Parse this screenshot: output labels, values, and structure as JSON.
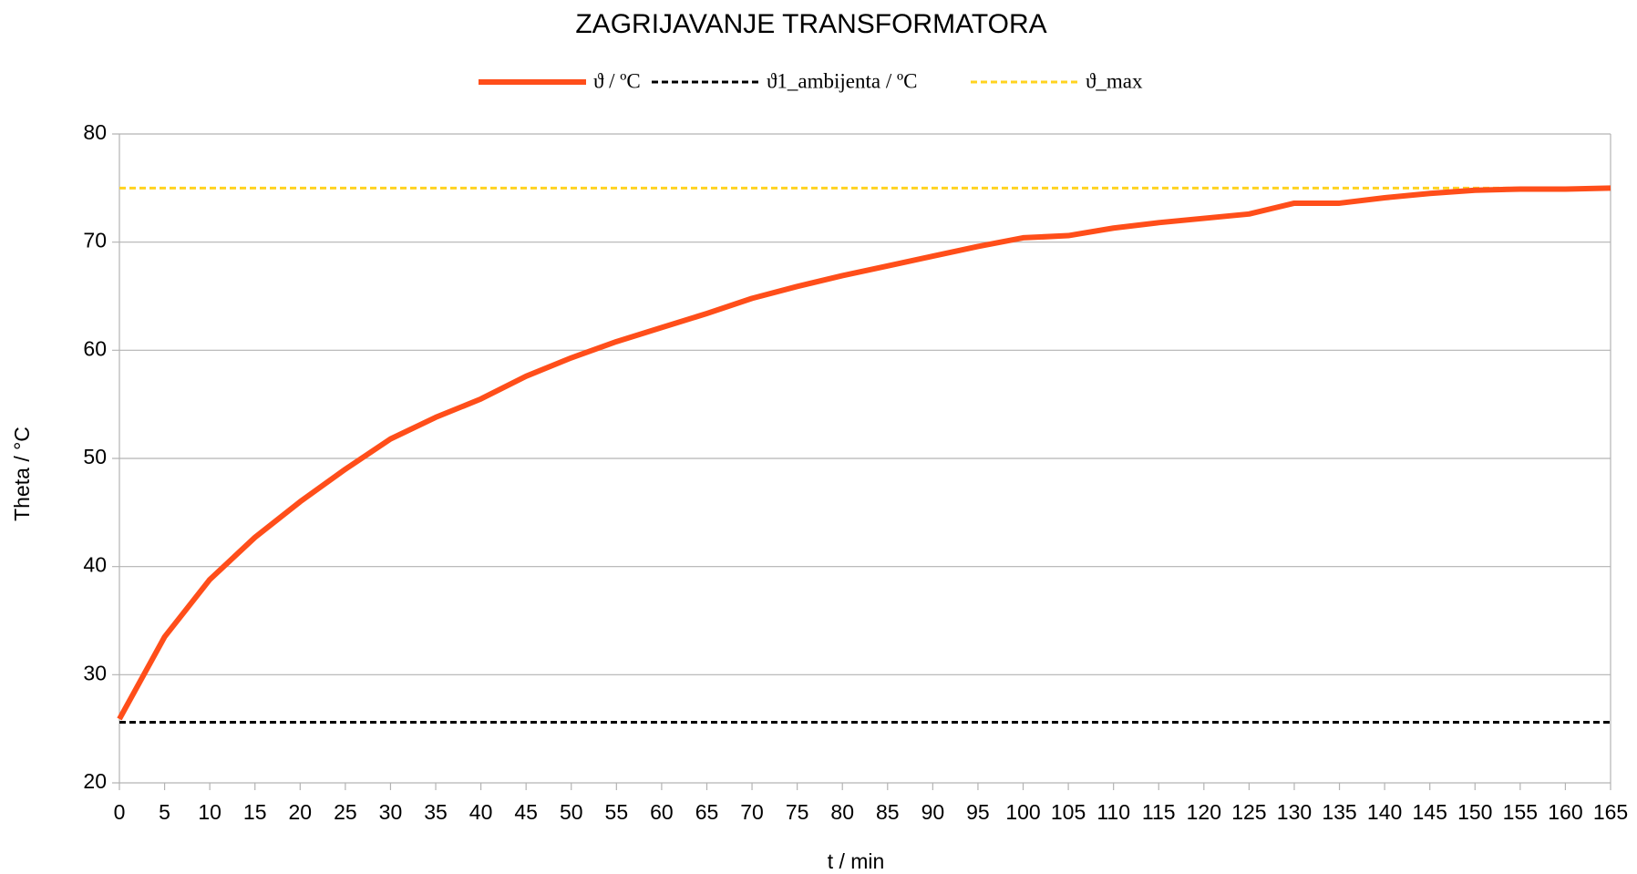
{
  "chart_data": {
    "type": "line",
    "title": "ZAGRIJAVANJE TRANSFORMATORA",
    "x_label": "t / min",
    "y_label": "Theta / °C",
    "x": [
      0,
      5,
      10,
      15,
      20,
      25,
      30,
      35,
      40,
      45,
      50,
      55,
      60,
      65,
      70,
      75,
      80,
      85,
      90,
      95,
      100,
      105,
      110,
      115,
      120,
      125,
      130,
      135,
      140,
      145,
      150,
      155,
      160,
      165
    ],
    "series": [
      {
        "name": "ϑ / ºC",
        "color": "#ff4e1a",
        "dash": "solid",
        "width": 6,
        "values": [
          25.9,
          33.5,
          38.8,
          42.7,
          46,
          49,
          51.8,
          53.8,
          55.5,
          57.6,
          59.3,
          60.8,
          62.1,
          63.4,
          64.8,
          65.9,
          66.9,
          67.8,
          68.7,
          69.6,
          70.4,
          70.6,
          71.3,
          71.8,
          72.2,
          72.6,
          73.6,
          73.6,
          74.1,
          74.5,
          74.8,
          74.9,
          74.9,
          75.0
        ]
      },
      {
        "name": "ϑ1_ambijenta / ºC",
        "color": "#000000",
        "dash": "dashed",
        "width": 3,
        "values": [
          25.6,
          25.6,
          25.6,
          25.6,
          25.6,
          25.6,
          25.6,
          25.6,
          25.6,
          25.6,
          25.6,
          25.6,
          25.6,
          25.6,
          25.6,
          25.6,
          25.6,
          25.6,
          25.6,
          25.6,
          25.6,
          25.6,
          25.6,
          25.6,
          25.6,
          25.6,
          25.6,
          25.6,
          25.6,
          25.6,
          25.6,
          25.6,
          25.6,
          25.6
        ]
      },
      {
        "name": "ϑ_max",
        "color": "#ffd320",
        "dash": "dashed",
        "width": 3,
        "values": [
          75,
          75,
          75,
          75,
          75,
          75,
          75,
          75,
          75,
          75,
          75,
          75,
          75,
          75,
          75,
          75,
          75,
          75,
          75,
          75,
          75,
          75,
          75,
          75,
          75,
          75,
          75,
          75,
          75,
          75,
          75,
          75,
          75,
          75
        ]
      }
    ],
    "xlim": [
      0,
      165
    ],
    "xticks": [
      0,
      5,
      10,
      15,
      20,
      25,
      30,
      35,
      40,
      45,
      50,
      55,
      60,
      65,
      70,
      75,
      80,
      85,
      90,
      95,
      100,
      105,
      110,
      115,
      120,
      125,
      130,
      135,
      140,
      145,
      150,
      155,
      160,
      165
    ],
    "ylim": [
      20,
      80
    ],
    "yticks": [
      20,
      30,
      40,
      50,
      60,
      70,
      80
    ],
    "grid": true,
    "legend": "top"
  }
}
